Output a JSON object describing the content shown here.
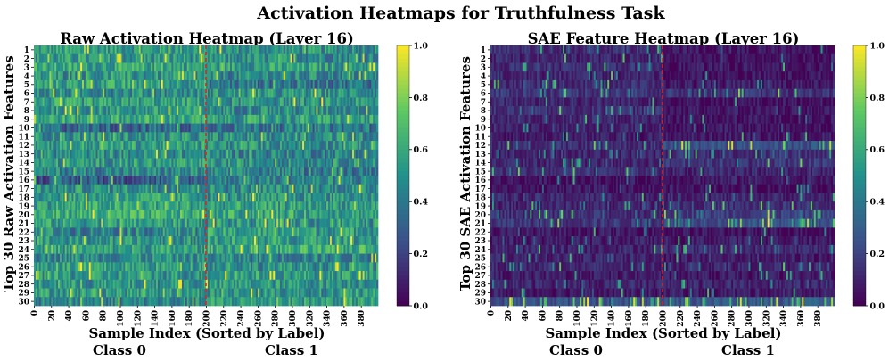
{
  "suptitle": "Activation Heatmaps for Truthfulness Task",
  "colorbar_ticks": [
    "0.0",
    "0.2",
    "0.4",
    "0.6",
    "0.8",
    "1.0"
  ],
  "colormap": [
    "#440154",
    "#3b528b",
    "#21918c",
    "#5ec962",
    "#fde725"
  ],
  "divider_color": "#d62728",
  "chart_data": [
    {
      "type": "heatmap",
      "title": "Raw Activation Heatmap (Layer 16)",
      "xlabel": "Sample Index (Sorted by Label)",
      "ylabel": "Top 30 Raw Activation Features",
      "class_labels": [
        "Class 0",
        "Class 1"
      ],
      "n_features": 30,
      "n_samples": 400,
      "class_boundary": 200,
      "x_ticks": [
        0,
        20,
        40,
        60,
        80,
        100,
        120,
        140,
        160,
        180,
        200,
        220,
        240,
        260,
        280,
        300,
        320,
        340,
        360,
        380
      ],
      "y_ticks": [
        1,
        2,
        3,
        4,
        5,
        6,
        7,
        8,
        9,
        10,
        11,
        12,
        13,
        14,
        15,
        16,
        17,
        18,
        19,
        20,
        21,
        22,
        23,
        24,
        25,
        26,
        27,
        28,
        29,
        30
      ],
      "value_range": [
        0.0,
        1.0
      ],
      "row_mean_class0": [
        0.55,
        0.52,
        0.58,
        0.5,
        0.56,
        0.48,
        0.55,
        0.52,
        0.6,
        0.35,
        0.5,
        0.55,
        0.48,
        0.52,
        0.45,
        0.3,
        0.5,
        0.55,
        0.58,
        0.62,
        0.55,
        0.45,
        0.5,
        0.55,
        0.48,
        0.55,
        0.52,
        0.5,
        0.55,
        0.45
      ],
      "row_mean_class1": [
        0.5,
        0.48,
        0.55,
        0.45,
        0.4,
        0.5,
        0.5,
        0.48,
        0.55,
        0.4,
        0.48,
        0.5,
        0.45,
        0.5,
        0.42,
        0.45,
        0.48,
        0.5,
        0.55,
        0.58,
        0.5,
        0.55,
        0.55,
        0.6,
        0.45,
        0.5,
        0.55,
        0.52,
        0.5,
        0.55
      ]
    },
    {
      "type": "heatmap",
      "title": "SAE Feature Heatmap (Layer 16)",
      "xlabel": "Sample Index (Sorted by Label)",
      "ylabel": "Top 30 SAE Activation Features",
      "class_labels": [
        "Class 0",
        "Class 1"
      ],
      "n_features": 30,
      "n_samples": 400,
      "class_boundary": 200,
      "x_ticks": [
        0,
        20,
        40,
        60,
        80,
        100,
        120,
        140,
        160,
        180,
        200,
        220,
        240,
        260,
        280,
        300,
        320,
        340,
        360,
        380
      ],
      "y_ticks": [
        1,
        2,
        3,
        4,
        5,
        6,
        7,
        8,
        9,
        10,
        11,
        12,
        13,
        14,
        15,
        16,
        17,
        18,
        19,
        20,
        21,
        22,
        23,
        24,
        25,
        26,
        27,
        28,
        29,
        30
      ],
      "value_range": [
        0.0,
        1.0
      ],
      "row_mean_class0": [
        0.25,
        0.2,
        0.25,
        0.2,
        0.25,
        0.3,
        0.2,
        0.25,
        0.2,
        0.2,
        0.15,
        0.25,
        0.2,
        0.2,
        0.25,
        0.1,
        0.1,
        0.2,
        0.2,
        0.25,
        0.3,
        0.12,
        0.15,
        0.2,
        0.2,
        0.2,
        0.15,
        0.2,
        0.15,
        0.45
      ],
      "row_mean_class1": [
        0.1,
        0.08,
        0.12,
        0.1,
        0.15,
        0.28,
        0.1,
        0.12,
        0.1,
        0.1,
        0.15,
        0.45,
        0.25,
        0.3,
        0.2,
        0.15,
        0.1,
        0.2,
        0.25,
        0.35,
        0.45,
        0.1,
        0.15,
        0.22,
        0.15,
        0.2,
        0.12,
        0.2,
        0.15,
        0.5
      ]
    }
  ]
}
